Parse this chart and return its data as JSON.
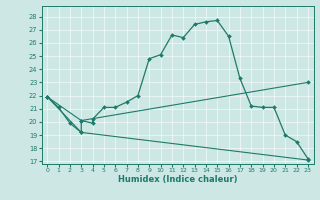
{
  "xlabel": "Humidex (Indice chaleur)",
  "xlim": [
    -0.5,
    23.5
  ],
  "ylim": [
    16.8,
    28.8
  ],
  "yticks": [
    17,
    18,
    19,
    20,
    21,
    22,
    23,
    24,
    25,
    26,
    27,
    28
  ],
  "xticks": [
    0,
    1,
    2,
    3,
    4,
    5,
    6,
    7,
    8,
    9,
    10,
    11,
    12,
    13,
    14,
    15,
    16,
    17,
    18,
    19,
    20,
    21,
    22,
    23
  ],
  "bg_color": "#cde8e4",
  "line_color": "#1e7a6a",
  "line1_x": [
    0,
    1,
    2,
    3,
    3,
    4,
    4,
    5,
    6,
    7,
    8,
    9,
    10,
    11,
    12,
    13,
    14,
    15,
    16,
    17,
    18,
    19,
    20,
    21,
    22,
    23
  ],
  "line1_y": [
    21.9,
    21.1,
    19.9,
    19.2,
    20.1,
    19.9,
    20.2,
    21.1,
    21.1,
    21.5,
    22.0,
    24.8,
    25.1,
    26.6,
    26.4,
    27.4,
    27.6,
    27.7,
    26.5,
    23.3,
    21.2,
    21.1,
    21.1,
    19.0,
    18.5,
    17.2
  ],
  "line2_x": [
    0,
    3,
    23
  ],
  "line2_y": [
    21.9,
    20.1,
    23.0
  ],
  "line3_x": [
    0,
    3,
    23
  ],
  "line3_y": [
    21.9,
    19.2,
    17.1
  ]
}
